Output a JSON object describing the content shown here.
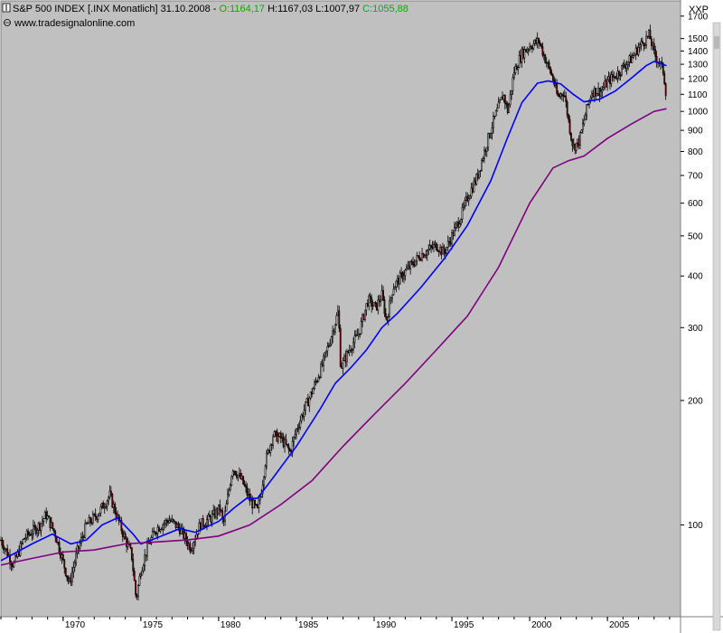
{
  "header": {
    "instrument": "S&P 500 INDEX [.INX  Monatlich] 31.10.2008 -",
    "open": "O:1164,17",
    "high": "H:1167,03",
    "low": "L:1007,97",
    "close": "C:1055,88",
    "watermark": "www.tradesignalonline.com",
    "axis_code": "XXP"
  },
  "colors": {
    "plot_background": "#c0c0c0",
    "open_text": "#00b000",
    "close_text": "#00b000",
    "price_up": "#ffffff",
    "price_down": "#8b0000",
    "ma_short": "#0000ff",
    "ma_long": "#800080"
  },
  "chart_data": {
    "type": "candlestick",
    "y_scale": "log",
    "ylim": [
      60,
      1850
    ],
    "xlim": [
      1966.0,
      2009.7
    ],
    "y_ticks": [
      {
        "value": 1700,
        "label": "1700"
      },
      {
        "value": 1500,
        "label": "1500"
      },
      {
        "value": 1400,
        "label": "1400"
      },
      {
        "value": 1300,
        "label": "1300"
      },
      {
        "value": 1200,
        "label": "1200"
      },
      {
        "value": 1100,
        "label": "1100"
      },
      {
        "value": 1000,
        "label": "1000"
      },
      {
        "value": 900,
        "label": "900"
      },
      {
        "value": 800,
        "label": "800"
      },
      {
        "value": 700,
        "label": "700"
      },
      {
        "value": 600,
        "label": "600"
      },
      {
        "value": 500,
        "label": "500"
      },
      {
        "value": 400,
        "label": "400"
      },
      {
        "value": 300,
        "label": "300"
      },
      {
        "value": 200,
        "label": "200"
      },
      {
        "value": 100,
        "label": "100"
      }
    ],
    "x_ticks": [
      {
        "value": 1970,
        "label": "1970"
      },
      {
        "value": 1975,
        "label": "1975"
      },
      {
        "value": 1980,
        "label": "1980"
      },
      {
        "value": 1985,
        "label": "1985"
      },
      {
        "value": 1990,
        "label": "1990"
      },
      {
        "value": 1995,
        "label": "1995"
      },
      {
        "value": 2000,
        "label": "2000"
      },
      {
        "value": 2005,
        "label": "2005"
      }
    ],
    "price_path": [
      [
        1966.0,
        92
      ],
      [
        1966.8,
        80
      ],
      [
        1967.5,
        93
      ],
      [
        1968.5,
        100
      ],
      [
        1968.9,
        106
      ],
      [
        1969.5,
        95
      ],
      [
        1970.4,
        72
      ],
      [
        1970.9,
        86
      ],
      [
        1971.5,
        100
      ],
      [
        1972.2,
        106
      ],
      [
        1973.0,
        118
      ],
      [
        1973.5,
        104
      ],
      [
        1974.0,
        92
      ],
      [
        1974.4,
        85
      ],
      [
        1974.7,
        66
      ],
      [
        1975.0,
        78
      ],
      [
        1975.5,
        90
      ],
      [
        1976.0,
        98
      ],
      [
        1976.8,
        103
      ],
      [
        1977.5,
        98
      ],
      [
        1978.2,
        88
      ],
      [
        1978.8,
        100
      ],
      [
        1979.5,
        104
      ],
      [
        1980.1,
        110
      ],
      [
        1980.3,
        100
      ],
      [
        1980.9,
        138
      ],
      [
        1981.5,
        128
      ],
      [
        1982.0,
        115
      ],
      [
        1982.5,
        108
      ],
      [
        1982.8,
        125
      ],
      [
        1983.0,
        142
      ],
      [
        1983.5,
        165
      ],
      [
        1984.0,
        162
      ],
      [
        1984.6,
        150
      ],
      [
        1985.0,
        170
      ],
      [
        1985.5,
        190
      ],
      [
        1986.0,
        210
      ],
      [
        1986.7,
        245
      ],
      [
        1987.4,
        300
      ],
      [
        1987.7,
        330
      ],
      [
        1987.85,
        240
      ],
      [
        1988.5,
        270
      ],
      [
        1989.0,
        290
      ],
      [
        1989.6,
        350
      ],
      [
        1990.1,
        335
      ],
      [
        1990.5,
        360
      ],
      [
        1990.8,
        310
      ],
      [
        1991.2,
        375
      ],
      [
        1992.0,
        410
      ],
      [
        1993.0,
        450
      ],
      [
        1994.0,
        475
      ],
      [
        1994.5,
        455
      ],
      [
        1995.0,
        500
      ],
      [
        1995.6,
        560
      ],
      [
        1996.0,
        620
      ],
      [
        1996.6,
        690
      ],
      [
        1997.0,
        780
      ],
      [
        1997.6,
        930
      ],
      [
        1998.3,
        1100
      ],
      [
        1998.6,
        1000
      ],
      [
        1999.0,
        1250
      ],
      [
        1999.5,
        1380
      ],
      [
        2000.0,
        1440
      ],
      [
        2000.6,
        1480
      ],
      [
        2001.0,
        1340
      ],
      [
        2001.5,
        1200
      ],
      [
        2001.8,
        1080
      ],
      [
        2002.2,
        1120
      ],
      [
        2002.6,
        900
      ],
      [
        2002.8,
        820
      ],
      [
        2003.2,
        850
      ],
      [
        2003.6,
        990
      ],
      [
        2004.0,
        1120
      ],
      [
        2004.6,
        1120
      ],
      [
        2005.0,
        1180
      ],
      [
        2005.6,
        1230
      ],
      [
        2006.0,
        1280
      ],
      [
        2006.6,
        1350
      ],
      [
        2007.0,
        1430
      ],
      [
        2007.7,
        1530
      ],
      [
        2008.0,
        1380
      ],
      [
        2008.4,
        1300
      ],
      [
        2008.6,
        1250
      ],
      [
        2008.8,
        1080
      ]
    ],
    "series": [
      {
        "values": [
          [
            1966.0,
            82
          ],
          [
            1968.0,
            90
          ],
          [
            1969.3,
            95
          ],
          [
            1970.5,
            90
          ],
          [
            1971.5,
            92
          ],
          [
            1972.5,
            100
          ],
          [
            1973.5,
            104
          ],
          [
            1974.5,
            95
          ],
          [
            1975.0,
            90
          ],
          [
            1976.0,
            93
          ],
          [
            1977.5,
            98
          ],
          [
            1978.5,
            96
          ],
          [
            1980.0,
            102
          ],
          [
            1981.0,
            110
          ],
          [
            1981.8,
            116
          ],
          [
            1982.5,
            116
          ],
          [
            1983.5,
            130
          ],
          [
            1985.0,
            155
          ],
          [
            1986.5,
            190
          ],
          [
            1987.5,
            220
          ],
          [
            1988.5,
            240
          ],
          [
            1989.5,
            265
          ],
          [
            1990.5,
            300
          ],
          [
            1991.5,
            325
          ],
          [
            1993.0,
            375
          ],
          [
            1994.5,
            440
          ],
          [
            1996.0,
            530
          ],
          [
            1997.5,
            680
          ],
          [
            1998.5,
            850
          ],
          [
            1999.5,
            1050
          ],
          [
            2000.5,
            1170
          ],
          [
            2001.2,
            1185
          ],
          [
            2002.0,
            1165
          ],
          [
            2002.8,
            1100
          ],
          [
            2003.5,
            1055
          ],
          [
            2004.5,
            1070
          ],
          [
            2005.5,
            1120
          ],
          [
            2006.5,
            1200
          ],
          [
            2007.5,
            1290
          ],
          [
            2008.0,
            1320
          ],
          [
            2008.8,
            1290
          ]
        ]
      },
      {
        "values": [
          [
            1966.0,
            80
          ],
          [
            1968.0,
            83
          ],
          [
            1970.0,
            86
          ],
          [
            1972.0,
            87
          ],
          [
            1974.0,
            90
          ],
          [
            1976.0,
            91
          ],
          [
            1978.0,
            92
          ],
          [
            1980.0,
            94
          ],
          [
            1982.0,
            100
          ],
          [
            1984.0,
            112
          ],
          [
            1986.0,
            128
          ],
          [
            1988.0,
            155
          ],
          [
            1990.0,
            185
          ],
          [
            1992.0,
            220
          ],
          [
            1994.0,
            265
          ],
          [
            1996.0,
            320
          ],
          [
            1998.0,
            420
          ],
          [
            2000.0,
            600
          ],
          [
            2001.5,
            730
          ],
          [
            2002.5,
            760
          ],
          [
            2003.5,
            780
          ],
          [
            2005.0,
            860
          ],
          [
            2006.5,
            930
          ],
          [
            2008.0,
            1000
          ],
          [
            2008.8,
            1015
          ]
        ]
      }
    ]
  }
}
